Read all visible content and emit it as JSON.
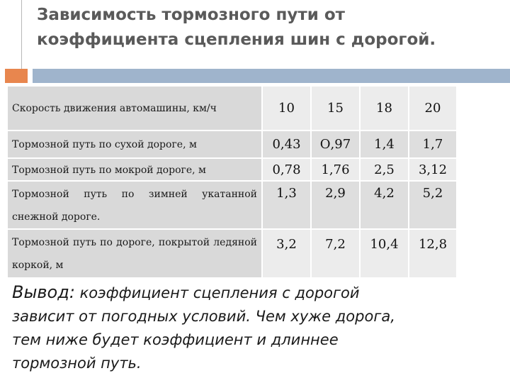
{
  "title": {
    "line1": "Зависимость тормозного пути от",
    "line2": "коэффициента сцепления шин с дорогой."
  },
  "table": {
    "header": {
      "label": "Скорость движения автомашины, км/ч",
      "speeds": [
        "10",
        "15",
        "18",
        "20"
      ]
    },
    "rows": [
      {
        "label": "Тормозной путь по сухой дороге, м",
        "values": [
          "0,43",
          "О,97",
          "1,4",
          "1,7"
        ]
      },
      {
        "label": "Тормозной путь по мокрой дороге, м",
        "values": [
          "0,78",
          "1,76",
          "2,5",
          "3,12"
        ]
      },
      {
        "label": "Тормозной путь по зимней укатанной снежной дороге.",
        "values": [
          "1,3",
          "2,9",
          "4,2",
          "5,2"
        ]
      },
      {
        "label": "Тормозной путь по дороге, покрытой ледяной коркой, м",
        "values": [
          "3,2",
          "7,2",
          "10,4",
          "12,8"
        ]
      }
    ]
  },
  "conclusion": {
    "lead": "Вывод:",
    "line1": "коэффициент сцепления с дорогой",
    "line2": "зависит от погодных условий. Чем хуже дорога,",
    "line3": "тем ниже будет коэффициент и длиннее",
    "line4": "тормозной путь."
  },
  "colors": {
    "accent_orange": "#e8864e",
    "accent_blue": "#9fb4cc",
    "title": "#5a5a5a"
  }
}
